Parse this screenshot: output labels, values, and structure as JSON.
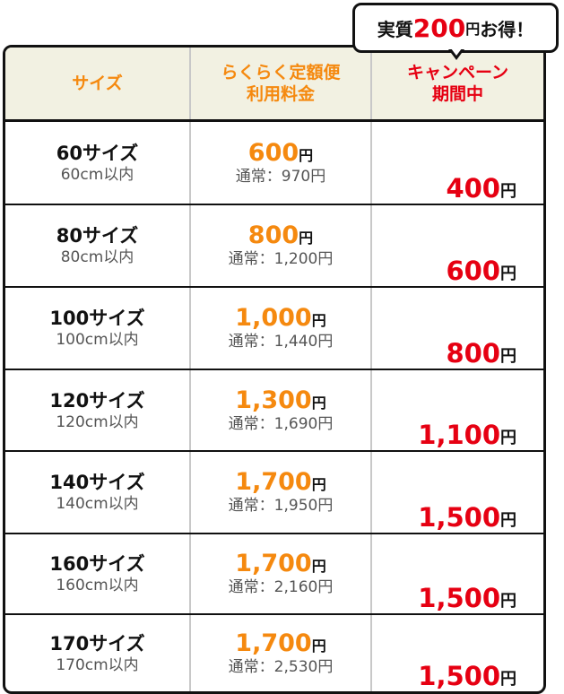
{
  "bubble": {
    "prefix": "実質",
    "amount": "200",
    "yen": "円",
    "suffix": "お得！"
  },
  "header": {
    "size": "サイズ",
    "fee_line1": "らくらく定額便",
    "fee_line2": "利用料金",
    "campaign_line1": "キャンペーン",
    "campaign_line2": "期間中"
  },
  "colors": {
    "orange": "#f5890f",
    "red": "#e60012",
    "header_bg": "#f2f1e2"
  },
  "rows": [
    {
      "size": "60サイズ",
      "limit": "60cm以内",
      "price": "600",
      "yen": "円",
      "regular": "通常：970円",
      "campaign": "400"
    },
    {
      "size": "80サイズ",
      "limit": "80cm以内",
      "price": "800",
      "yen": "円",
      "regular": "通常：1,200円",
      "campaign": "600"
    },
    {
      "size": "100サイズ",
      "limit": "100cm以内",
      "price": "1,000",
      "yen": "円",
      "regular": "通常：1,440円",
      "campaign": "800"
    },
    {
      "size": "120サイズ",
      "limit": "120cm以内",
      "price": "1,300",
      "yen": "円",
      "regular": "通常：1,690円",
      "campaign": "1,100"
    },
    {
      "size": "140サイズ",
      "limit": "140cm以内",
      "price": "1,700",
      "yen": "円",
      "regular": "通常：1,950円",
      "campaign": "1,500"
    },
    {
      "size": "160サイズ",
      "limit": "160cm以内",
      "price": "1,700",
      "yen": "円",
      "regular": "通常：2,160円",
      "campaign": "1,500"
    },
    {
      "size": "170サイズ",
      "limit": "170cm以内",
      "price": "1,700",
      "yen": "円",
      "regular": "通常：2,530円",
      "campaign": "1,500"
    }
  ]
}
